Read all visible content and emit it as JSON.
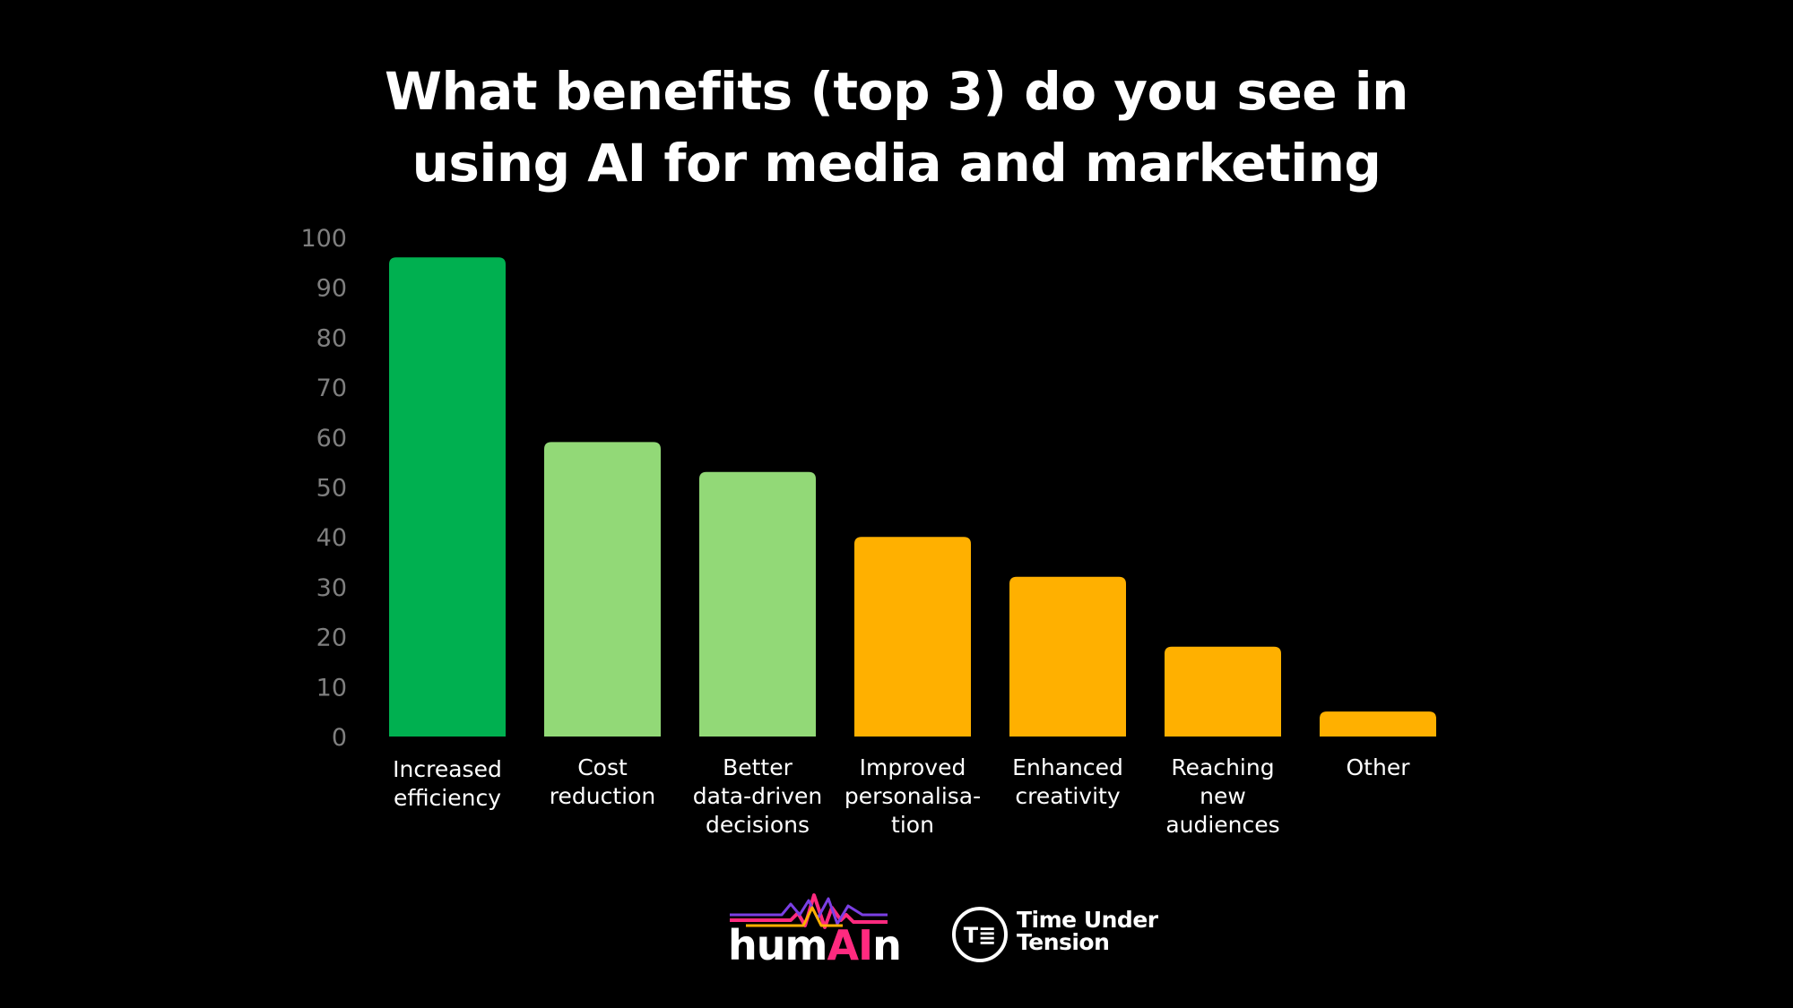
{
  "title_lines": [
    "What benefits (top 3) do you see in",
    "using AI for media and marketing"
  ],
  "chart_data": {
    "type": "bar",
    "title": "What benefits (top 3) do you see in using AI for media and marketing",
    "xlabel": "",
    "ylabel": "",
    "ylim": [
      0,
      100
    ],
    "yticks": [
      0,
      10,
      20,
      30,
      40,
      50,
      60,
      70,
      80,
      90,
      100
    ],
    "grid": false,
    "legend": "none",
    "categories": [
      "Increased\nefficiency",
      "Cost\nreduction",
      "Better\ndata-driven\ndecisions",
      "Improved\npersonalisa-\ntion",
      "Enhanced\ncreativity",
      "Reaching\nnew\naudiences",
      "Other"
    ],
    "values": [
      96,
      59,
      53,
      40,
      32,
      18,
      5
    ],
    "colors": [
      "#00b050",
      "#92d977",
      "#92d977",
      "#ffb000",
      "#ffb000",
      "#ffb000",
      "#ffb000"
    ],
    "tick_color": "#7f7f7f"
  },
  "logos": {
    "humain": {
      "prefix": "hum",
      "highlight": "AI",
      "suffix": "n",
      "accent_colors": [
        "#ff2a7f",
        "#7b3fe4",
        "#ffb000"
      ]
    },
    "time_under_tension": {
      "line1": "Time Under",
      "line2": "Tension"
    }
  }
}
